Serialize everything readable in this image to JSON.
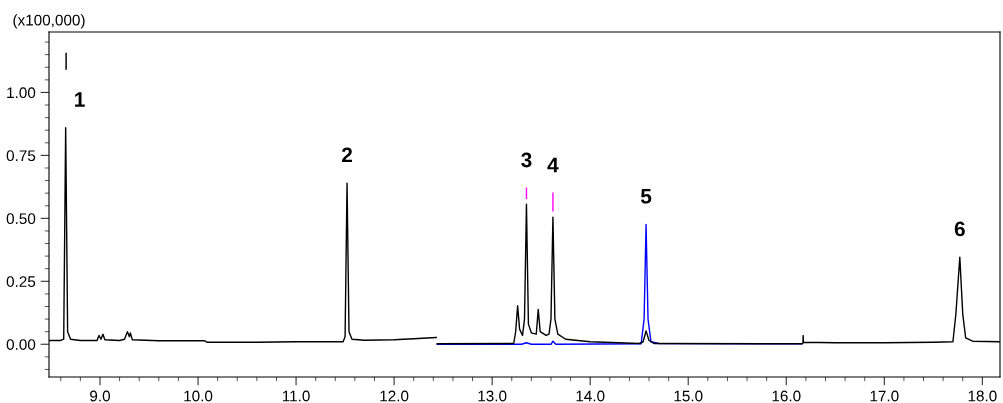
{
  "chart_data": {
    "type": "line",
    "ylabel": "(x100,000)",
    "xlim": [
      8.48,
      18.18
    ],
    "ylim": [
      -0.13,
      1.24
    ],
    "xticks": [
      {
        "value": 8.6,
        "label": null
      },
      {
        "value": 8.8,
        "label": null
      },
      {
        "value": 9.0,
        "label": "9.0"
      },
      {
        "value": 9.2,
        "label": null
      },
      {
        "value": 9.4,
        "label": null
      },
      {
        "value": 9.6,
        "label": null
      },
      {
        "value": 9.8,
        "label": null
      },
      {
        "value": 10.0,
        "label": "10.0"
      },
      {
        "value": 10.2,
        "label": null
      },
      {
        "value": 10.4,
        "label": null
      },
      {
        "value": 10.6,
        "label": null
      },
      {
        "value": 10.8,
        "label": null
      },
      {
        "value": 11.0,
        "label": "11.0"
      },
      {
        "value": 11.2,
        "label": null
      },
      {
        "value": 11.4,
        "label": null
      },
      {
        "value": 11.6,
        "label": null
      },
      {
        "value": 11.8,
        "label": null
      },
      {
        "value": 12.0,
        "label": "12.0"
      },
      {
        "value": 12.2,
        "label": null
      },
      {
        "value": 12.4,
        "label": null
      },
      {
        "value": 12.6,
        "label": null
      },
      {
        "value": 12.8,
        "label": null
      },
      {
        "value": 13.0,
        "label": "13.0"
      },
      {
        "value": 13.2,
        "label": null
      },
      {
        "value": 13.4,
        "label": null
      },
      {
        "value": 13.6,
        "label": null
      },
      {
        "value": 13.8,
        "label": null
      },
      {
        "value": 14.0,
        "label": "14.0"
      },
      {
        "value": 14.2,
        "label": null
      },
      {
        "value": 14.4,
        "label": null
      },
      {
        "value": 14.6,
        "label": null
      },
      {
        "value": 14.8,
        "label": null
      },
      {
        "value": 15.0,
        "label": "15.0"
      },
      {
        "value": 15.2,
        "label": null
      },
      {
        "value": 15.4,
        "label": null
      },
      {
        "value": 15.6,
        "label": null
      },
      {
        "value": 15.8,
        "label": null
      },
      {
        "value": 16.0,
        "label": "16.0"
      },
      {
        "value": 16.2,
        "label": null
      },
      {
        "value": 16.4,
        "label": null
      },
      {
        "value": 16.6,
        "label": null
      },
      {
        "value": 16.8,
        "label": null
      },
      {
        "value": 17.0,
        "label": "17.0"
      },
      {
        "value": 17.2,
        "label": null
      },
      {
        "value": 17.4,
        "label": null
      },
      {
        "value": 17.6,
        "label": null
      },
      {
        "value": 17.8,
        "label": null
      },
      {
        "value": 18.0,
        "label": "18.0"
      }
    ],
    "yticks": [
      {
        "value": -0.1,
        "label": null
      },
      {
        "value": -0.05,
        "label": null
      },
      {
        "value": 0.0,
        "label": "0.00"
      },
      {
        "value": 0.05,
        "label": null
      },
      {
        "value": 0.1,
        "label": null
      },
      {
        "value": 0.15,
        "label": null
      },
      {
        "value": 0.2,
        "label": null
      },
      {
        "value": 0.25,
        "label": "0.25"
      },
      {
        "value": 0.3,
        "label": null
      },
      {
        "value": 0.35,
        "label": null
      },
      {
        "value": 0.4,
        "label": null
      },
      {
        "value": 0.45,
        "label": null
      },
      {
        "value": 0.5,
        "label": "0.50"
      },
      {
        "value": 0.55,
        "label": null
      },
      {
        "value": 0.6,
        "label": null
      },
      {
        "value": 0.65,
        "label": null
      },
      {
        "value": 0.7,
        "label": null
      },
      {
        "value": 0.75,
        "label": "0.75"
      },
      {
        "value": 0.8,
        "label": null
      },
      {
        "value": 0.85,
        "label": null
      },
      {
        "value": 0.9,
        "label": null
      },
      {
        "value": 0.95,
        "label": null
      },
      {
        "value": 1.0,
        "label": "1.00"
      },
      {
        "value": 1.05,
        "label": null
      },
      {
        "value": 1.1,
        "label": null
      },
      {
        "value": 1.15,
        "label": null
      },
      {
        "value": 1.2,
        "label": null
      }
    ],
    "grid": false,
    "legend": false,
    "marker": "none",
    "line_style": "solid",
    "series": [
      {
        "color": "#ff00ff",
        "x": [
          13.35,
          13.35,
          13.5,
          13.62,
          13.62
        ],
        "values": [
          0.58,
          0.62,
          null,
          0.53,
          0.6
        ]
      },
      {
        "color": "#0000ff",
        "x": [
          12.44,
          13.3,
          13.35,
          13.4,
          13.6,
          13.62,
          13.65,
          14.52,
          14.55,
          14.57,
          14.59,
          14.62,
          14.7,
          16.16
        ],
        "values": [
          0.0,
          0.0,
          0.006,
          0.0,
          0.0,
          0.012,
          0.0,
          0.002,
          0.1,
          0.476,
          0.1,
          0.01,
          0.003,
          0.002
        ]
      },
      {
        "color": "#000000",
        "x": [
          8.48,
          8.6,
          8.63,
          8.65,
          8.67,
          8.7,
          8.8,
          8.97,
          8.99,
          9.01,
          9.03,
          9.05,
          9.2,
          9.25,
          9.28,
          9.3,
          9.31,
          9.33,
          9.6,
          10.07,
          10.09,
          10.6,
          11.0,
          11.48,
          11.5,
          11.52,
          11.54,
          11.57,
          11.7,
          12.0,
          12.2,
          12.43,
          12.435,
          12.44,
          13.22,
          13.24,
          13.26,
          13.28,
          13.31,
          13.33,
          13.35,
          13.37,
          13.4,
          13.45,
          13.47,
          13.49,
          13.55,
          13.58,
          13.6,
          13.62,
          13.64,
          13.67,
          13.75,
          14.0,
          14.5,
          14.54,
          14.57,
          14.6,
          14.65,
          16.16,
          16.165,
          16.17,
          16.172,
          16.175,
          16.5,
          17.0,
          17.5,
          17.7,
          17.73,
          17.77,
          17.8,
          17.83,
          17.9,
          18.18
        ],
        "values": [
          0.015,
          0.015,
          0.02,
          0.86,
          0.05,
          0.02,
          0.015,
          0.015,
          0.035,
          0.02,
          0.04,
          0.018,
          0.015,
          0.02,
          0.05,
          0.03,
          0.045,
          0.018,
          0.014,
          0.014,
          0.008,
          0.008,
          0.01,
          0.01,
          0.03,
          0.64,
          0.05,
          0.02,
          0.016,
          0.018,
          0.022,
          0.027,
          null,
          0.002,
          0.003,
          0.05,
          0.153,
          0.06,
          0.035,
          0.1,
          0.556,
          0.08,
          0.045,
          0.04,
          0.138,
          0.05,
          0.035,
          0.04,
          0.1,
          0.505,
          0.1,
          0.04,
          0.02,
          0.01,
          0.003,
          0.01,
          0.053,
          0.015,
          0.003,
          0.002,
          null,
          0.005,
          0.035,
          0.008,
          0.006,
          0.006,
          0.008,
          0.01,
          0.12,
          0.346,
          0.12,
          0.025,
          0.012,
          0.01
        ]
      }
    ],
    "annotations": [
      "|",
      {
        "text": "1",
        "x": 8.65,
        "y": 0.86
      },
      {
        "text": "2",
        "x": 11.52,
        "y": 0.64
      },
      {
        "text": "3",
        "x": 13.35,
        "y": 0.62
      },
      {
        "text": "4",
        "x": 13.62,
        "y": 0.6
      },
      {
        "text": "5",
        "x": 14.57,
        "y": 0.476
      },
      {
        "text": "6",
        "x": 17.77,
        "y": 0.346
      }
    ]
  }
}
